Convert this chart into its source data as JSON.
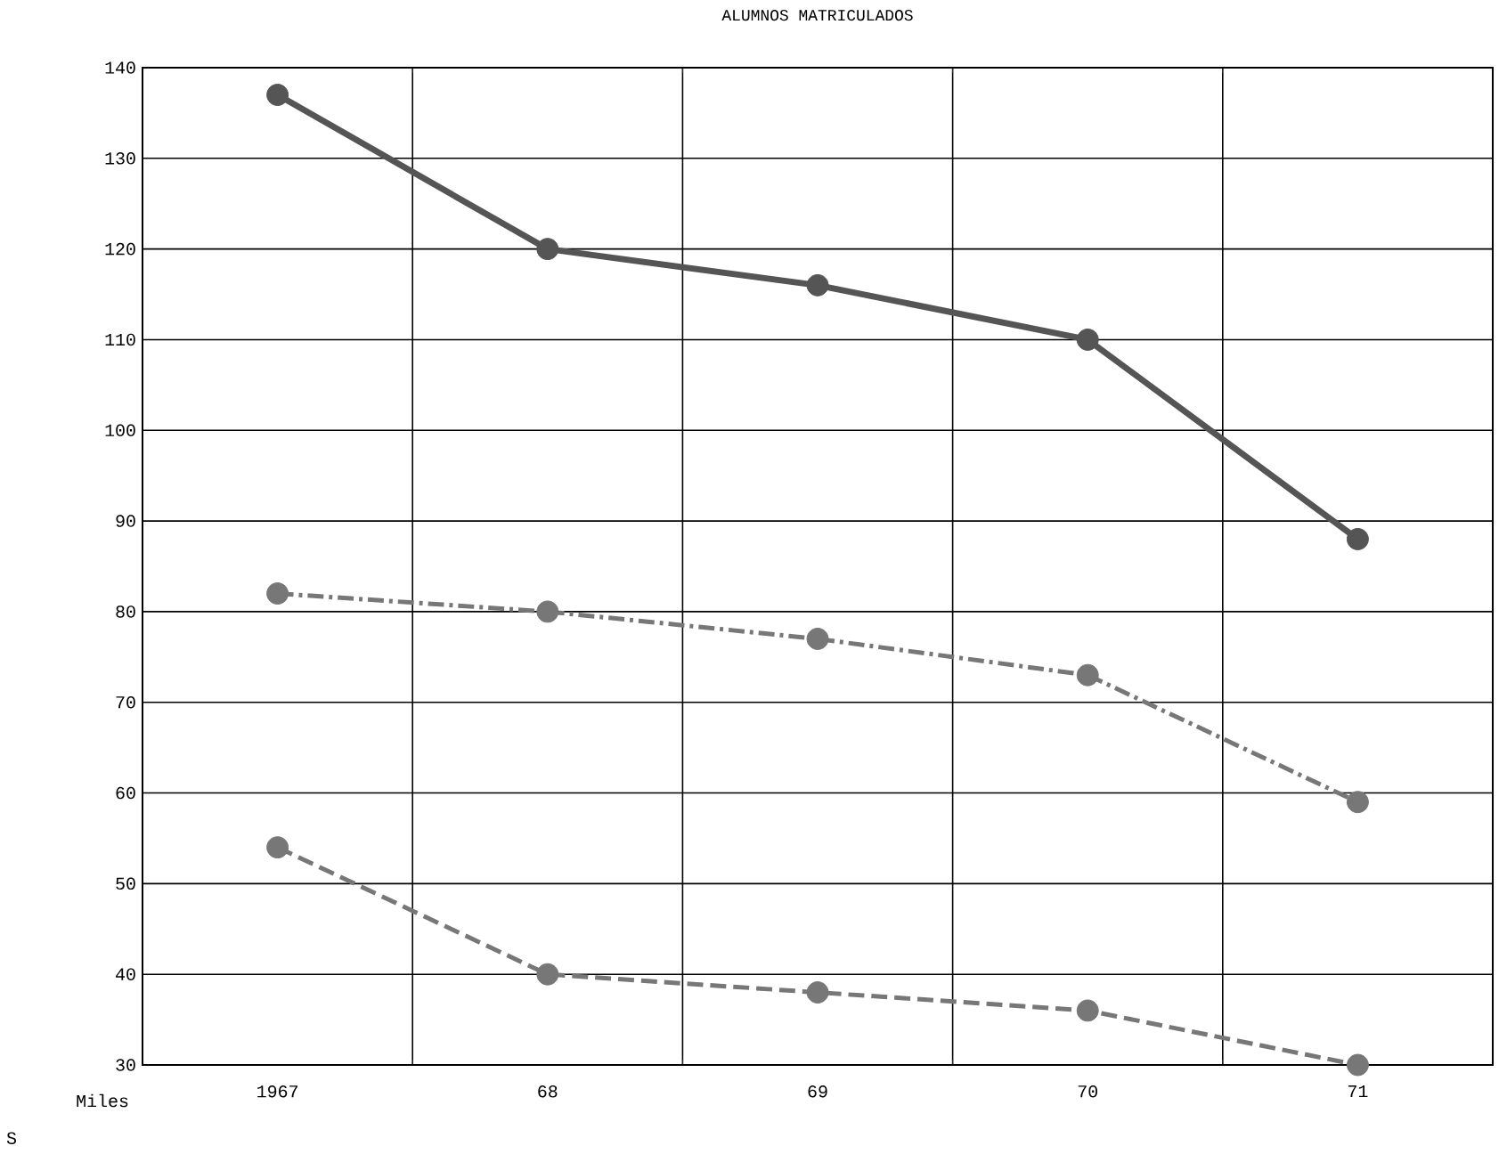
{
  "chart_data": {
    "type": "line",
    "title": "ALUMNOS MATRICULADOS",
    "ylabel": "Miles",
    "annotations": [
      "S"
    ],
    "categories": [
      "1967",
      "68",
      "69",
      "70",
      "71"
    ],
    "series": [
      {
        "color": "#555555",
        "values": [
          137,
          120,
          116,
          110,
          88
        ],
        "line_style": "solid"
      },
      {
        "color": "#777777",
        "values": [
          82,
          80,
          77,
          73,
          59
        ],
        "line_style": "dashdot"
      },
      {
        "color": "#777777",
        "values": [
          54,
          40,
          38,
          36,
          30
        ],
        "line_style": "dashed"
      }
    ],
    "ylim": [
      30,
      140
    ],
    "yticks": [
      30,
      40,
      50,
      60,
      70,
      80,
      90,
      100,
      110,
      120,
      130,
      140
    ],
    "grid": true,
    "marker": "circle"
  }
}
